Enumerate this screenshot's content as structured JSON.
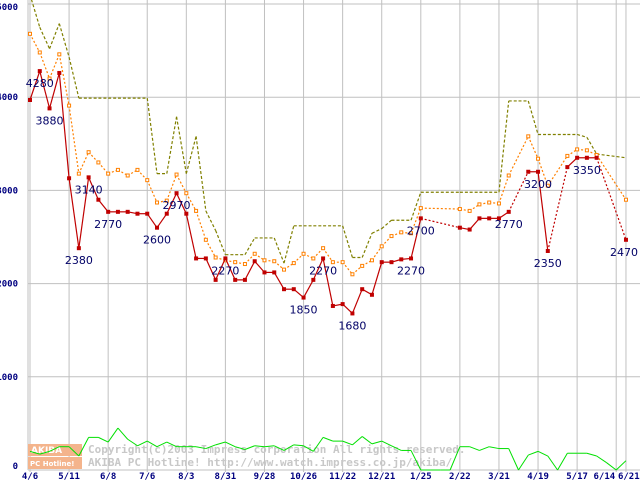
{
  "chart_data": {
    "type": "line",
    "title": "",
    "xlabel": "",
    "ylabel": "",
    "ylim": [
      0,
      5000
    ],
    "yticks": [
      "0",
      "1000",
      "2000",
      "3000",
      "4000",
      "5000"
    ],
    "grid": true,
    "xtick_labels": [
      {
        "index": 0,
        "label": "4/6"
      },
      {
        "index": 4,
        "label": "5/11"
      },
      {
        "index": 8,
        "label": "6/8"
      },
      {
        "index": 12,
        "label": "7/6"
      },
      {
        "index": 16,
        "label": "8/3"
      },
      {
        "index": 20,
        "label": "8/31"
      },
      {
        "index": 24,
        "label": "9/28"
      },
      {
        "index": 28,
        "label": "10/26"
      },
      {
        "index": 32,
        "label": "11/22"
      },
      {
        "index": 36,
        "label": "12/21"
      },
      {
        "index": 40,
        "label": "1/25"
      },
      {
        "index": 44,
        "label": "2/22"
      },
      {
        "index": 48,
        "label": "3/21"
      },
      {
        "index": 52,
        "label": "4/19"
      },
      {
        "index": 56,
        "label": "5/17"
      },
      {
        "index": 60,
        "label": "6/14"
      },
      {
        "index": 61,
        "label": "6/21"
      }
    ],
    "series": [
      {
        "name": "max",
        "color": "#808000",
        "style": "dashed",
        "points": [
          [
            0,
            5300
          ],
          [
            1,
            4750
          ],
          [
            2,
            4520
          ],
          [
            3,
            4790
          ],
          [
            4,
            4430
          ],
          [
            5,
            3990
          ],
          [
            6,
            3990
          ],
          [
            7,
            3990
          ],
          [
            8,
            3990
          ],
          [
            9,
            3990
          ],
          [
            10,
            3990
          ],
          [
            11,
            3990
          ],
          [
            12,
            3990
          ],
          [
            13,
            3180
          ],
          [
            14,
            3180
          ],
          [
            15,
            3790
          ],
          [
            16,
            3180
          ],
          [
            17,
            3580
          ],
          [
            18,
            2780
          ],
          [
            19,
            2570
          ],
          [
            20,
            2310
          ],
          [
            21,
            2310
          ],
          [
            22,
            2310
          ],
          [
            23,
            2490
          ],
          [
            24,
            2490
          ],
          [
            25,
            2490
          ],
          [
            26,
            2220
          ],
          [
            27,
            2620
          ],
          [
            28,
            2620
          ],
          [
            29,
            2620
          ],
          [
            30,
            2620
          ],
          [
            31,
            2620
          ],
          [
            32,
            2620
          ],
          [
            33,
            2280
          ],
          [
            34,
            2280
          ],
          [
            35,
            2540
          ],
          [
            36,
            2590
          ],
          [
            37,
            2680
          ],
          [
            38,
            2680
          ],
          [
            39,
            2680
          ],
          [
            40,
            2980
          ],
          [
            44,
            2980
          ],
          [
            45,
            2980
          ],
          [
            46,
            2980
          ],
          [
            47,
            2980
          ],
          [
            48,
            2980
          ],
          [
            49,
            3960
          ],
          [
            50,
            3960
          ],
          [
            51,
            3960
          ],
          [
            52,
            3600
          ],
          [
            53,
            3600
          ],
          [
            55,
            3600
          ],
          [
            56,
            3600
          ],
          [
            57,
            3570
          ],
          [
            58,
            3390
          ],
          [
            61,
            3350
          ]
        ]
      },
      {
        "name": "average",
        "color": "#ff8000",
        "style": "dotted",
        "points": [
          [
            0,
            4680
          ],
          [
            1,
            4480
          ],
          [
            2,
            4200
          ],
          [
            3,
            4460
          ],
          [
            4,
            3910
          ],
          [
            5,
            3180
          ],
          [
            6,
            3410
          ],
          [
            7,
            3300
          ],
          [
            8,
            3180
          ],
          [
            9,
            3220
          ],
          [
            10,
            3160
          ],
          [
            11,
            3220
          ],
          [
            12,
            3110
          ],
          [
            13,
            2870
          ],
          [
            14,
            2890
          ],
          [
            15,
            3170
          ],
          [
            16,
            2970
          ],
          [
            17,
            2780
          ],
          [
            18,
            2470
          ],
          [
            19,
            2280
          ],
          [
            20,
            2250
          ],
          [
            21,
            2230
          ],
          [
            22,
            2210
          ],
          [
            23,
            2320
          ],
          [
            24,
            2250
          ],
          [
            25,
            2240
          ],
          [
            26,
            2150
          ],
          [
            27,
            2220
          ],
          [
            28,
            2320
          ],
          [
            29,
            2270
          ],
          [
            30,
            2380
          ],
          [
            31,
            2230
          ],
          [
            32,
            2230
          ],
          [
            33,
            2100
          ],
          [
            34,
            2190
          ],
          [
            35,
            2250
          ],
          [
            36,
            2400
          ],
          [
            37,
            2510
          ],
          [
            38,
            2550
          ],
          [
            39,
            2540
          ],
          [
            40,
            2810
          ],
          [
            44,
            2800
          ],
          [
            45,
            2780
          ],
          [
            46,
            2850
          ],
          [
            47,
            2870
          ],
          [
            48,
            2860
          ],
          [
            49,
            3160
          ],
          [
            51,
            3580
          ],
          [
            52,
            3340
          ],
          [
            53,
            3050
          ],
          [
            55,
            3370
          ],
          [
            56,
            3440
          ],
          [
            57,
            3430
          ],
          [
            58,
            3380
          ],
          [
            61,
            2900
          ]
        ]
      },
      {
        "name": "min",
        "color": "#c00000",
        "style": "solid",
        "points": [
          [
            0,
            3970
          ],
          [
            1,
            4280
          ],
          [
            2,
            3880
          ],
          [
            3,
            4260
          ],
          [
            4,
            3130
          ],
          [
            5,
            2380
          ],
          [
            6,
            3140
          ],
          [
            7,
            2900
          ],
          [
            8,
            2770
          ],
          [
            9,
            2770
          ],
          [
            10,
            2770
          ],
          [
            11,
            2750
          ],
          [
            12,
            2750
          ],
          [
            13,
            2600
          ],
          [
            14,
            2750
          ],
          [
            15,
            2970
          ],
          [
            16,
            2750
          ],
          [
            17,
            2270
          ],
          [
            18,
            2270
          ],
          [
            19,
            2040
          ],
          [
            20,
            2270
          ],
          [
            21,
            2040
          ],
          [
            22,
            2040
          ],
          [
            23,
            2240
          ],
          [
            24,
            2120
          ],
          [
            25,
            2120
          ],
          [
            26,
            1940
          ],
          [
            27,
            1940
          ],
          [
            28,
            1850
          ],
          [
            29,
            2040
          ],
          [
            30,
            2270
          ],
          [
            31,
            1760
          ],
          [
            32,
            1780
          ],
          [
            33,
            1680
          ],
          [
            34,
            1940
          ],
          [
            35,
            1880
          ],
          [
            36,
            2230
          ],
          [
            37,
            2230
          ],
          [
            38,
            2260
          ],
          [
            39,
            2270
          ],
          [
            40,
            2700
          ],
          [
            44,
            2600
          ],
          [
            45,
            2580
          ],
          [
            46,
            2700
          ],
          [
            47,
            2700
          ],
          [
            48,
            2700
          ],
          [
            49,
            2770
          ],
          [
            51,
            3200
          ],
          [
            52,
            3200
          ],
          [
            53,
            2350
          ],
          [
            55,
            3250
          ],
          [
            56,
            3350
          ],
          [
            57,
            3350
          ],
          [
            58,
            3350
          ],
          [
            61,
            2470
          ]
        ]
      },
      {
        "name": "count",
        "color": "#00e000",
        "style": "solid",
        "points": [
          [
            0,
            200
          ],
          [
            1,
            170
          ],
          [
            2,
            200
          ],
          [
            3,
            250
          ],
          [
            4,
            250
          ],
          [
            5,
            150
          ],
          [
            6,
            350
          ],
          [
            7,
            350
          ],
          [
            8,
            300
          ],
          [
            9,
            450
          ],
          [
            10,
            330
          ],
          [
            11,
            260
          ],
          [
            12,
            310
          ],
          [
            13,
            250
          ],
          [
            14,
            300
          ],
          [
            15,
            250
          ],
          [
            16,
            250
          ],
          [
            17,
            250
          ],
          [
            18,
            230
          ],
          [
            19,
            270
          ],
          [
            20,
            300
          ],
          [
            21,
            250
          ],
          [
            22,
            220
          ],
          [
            23,
            260
          ],
          [
            24,
            250
          ],
          [
            25,
            260
          ],
          [
            26,
            210
          ],
          [
            27,
            270
          ],
          [
            28,
            260
          ],
          [
            29,
            200
          ],
          [
            30,
            350
          ],
          [
            31,
            310
          ],
          [
            32,
            310
          ],
          [
            33,
            270
          ],
          [
            34,
            360
          ],
          [
            35,
            280
          ],
          [
            36,
            310
          ],
          [
            37,
            260
          ],
          [
            38,
            210
          ],
          [
            39,
            210
          ],
          [
            40,
            0
          ],
          [
            41,
            0
          ],
          [
            42,
            0
          ],
          [
            43,
            0
          ],
          [
            44,
            250
          ],
          [
            45,
            250
          ],
          [
            46,
            210
          ],
          [
            47,
            250
          ],
          [
            48,
            230
          ],
          [
            49,
            230
          ],
          [
            50,
            0
          ],
          [
            51,
            160
          ],
          [
            52,
            200
          ],
          [
            53,
            150
          ],
          [
            54,
            0
          ],
          [
            55,
            180
          ],
          [
            56,
            180
          ],
          [
            57,
            180
          ],
          [
            58,
            150
          ],
          [
            59,
            80
          ],
          [
            60,
            0
          ],
          [
            61,
            100
          ]
        ]
      }
    ],
    "annotations": [
      {
        "series": "min",
        "index": 1,
        "text": "4280"
      },
      {
        "series": "min",
        "index": 2,
        "text": "3880"
      },
      {
        "series": "min",
        "index": 5,
        "text": "2380"
      },
      {
        "series": "min",
        "index": 6,
        "text": "3140"
      },
      {
        "series": "min",
        "index": 8,
        "text": "2770"
      },
      {
        "series": "min",
        "index": 13,
        "text": "2600"
      },
      {
        "series": "min",
        "index": 15,
        "text": "2970"
      },
      {
        "series": "min",
        "index": 20,
        "text": "2270"
      },
      {
        "series": "min",
        "index": 28,
        "text": "1850"
      },
      {
        "series": "min",
        "index": 30,
        "text": "2270"
      },
      {
        "series": "min",
        "index": 33,
        "text": "1680"
      },
      {
        "series": "min",
        "index": 39,
        "text": "2270"
      },
      {
        "series": "min",
        "index": 40,
        "text": "2700"
      },
      {
        "series": "min",
        "index": 49,
        "text": "2770"
      },
      {
        "series": "min",
        "index": 52,
        "text": "3200"
      },
      {
        "series": "min",
        "index": 53,
        "text": "2350"
      },
      {
        "series": "min",
        "index": 57,
        "text": "3350"
      },
      {
        "series": "min",
        "index": 61,
        "text": "2470"
      }
    ]
  },
  "watermark": {
    "logo_top": "AKIBA",
    "logo_bottom": "PC Hotline!",
    "line1": "Copyright(c)2003 Impress corporation All rights reserved.",
    "line2": "AKIBA PC Hotline!  http://www.watch.impress.co.jp/akiba/"
  }
}
